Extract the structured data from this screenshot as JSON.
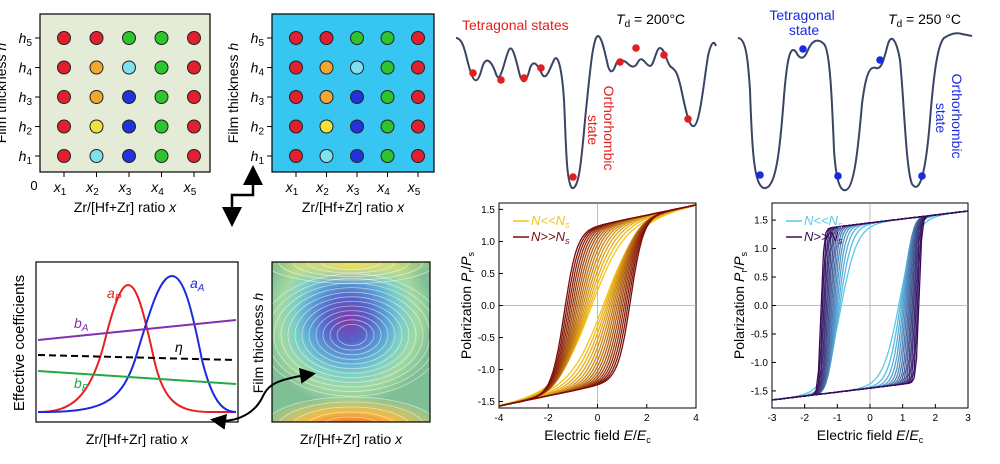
{
  "grid": {
    "x_ticks": [
      "x1",
      "x2",
      "x3",
      "x4",
      "x5"
    ],
    "x_labels": [
      "x",
      "x",
      "x",
      "x",
      "x"
    ],
    "sub_labels": [
      "1",
      "2",
      "3",
      "4",
      "5"
    ],
    "h_labels": [
      "h",
      "h",
      "h",
      "h",
      "h"
    ],
    "origin": "0",
    "ylabel_prefix": "Film thickness ",
    "ylabel_var": "h",
    "xlabel_prefix": "Zr/[Hf+Zr] ratio ",
    "xlabel_var": "x",
    "rows_h5_to_h1": [
      [
        "#e0202e",
        "#e0202e",
        "#2ec42e",
        "#2ec42e",
        "#e0202e"
      ],
      [
        "#e0202e",
        "#f0a830",
        "#7fe0f0",
        "#2ec42e",
        "#e0202e"
      ],
      [
        "#e0202e",
        "#f0a830",
        "#2233dd",
        "#2ec42e",
        "#e0202e"
      ],
      [
        "#e0202e",
        "#f0e040",
        "#2233dd",
        "#2ec42e",
        "#e0202e"
      ],
      [
        "#e0202e",
        "#7fe0f0",
        "#2233dd",
        "#2ec42e",
        "#e0202e"
      ]
    ],
    "bg_left": "#e4ecd8",
    "bg_right": "#37c6f2"
  },
  "coeffs": {
    "ylabel": "Effective coefficients",
    "xlabel_prefix": "Zr/[Hf+Zr] ratio ",
    "xlabel_var": "x",
    "aP": "a",
    "aP_sub": "P",
    "aA": "a",
    "aA_sub": "A",
    "bA": "b",
    "bA_sub": "A",
    "bP": "b",
    "bP_sub": "P",
    "eta": "η"
  },
  "contour": {
    "ylabel_prefix": "Film thickness ",
    "ylabel_var": "h",
    "xlabel_prefix": "Zr/[Hf+Zr] ratio ",
    "xlabel_var": "x"
  },
  "landscape": {
    "left_title": "Tetragonal states",
    "left_temp_prefix": "T",
    "left_temp_sub": "d",
    "left_temp_value": " = 200°C",
    "left_state": [
      "Orthorhombic",
      "state"
    ],
    "right_title": [
      "Tetragonal",
      "state"
    ],
    "right_temp_prefix": "T",
    "right_temp_sub": "d",
    "right_temp_value": " = 250 °C",
    "right_state": [
      "Orthorhombic",
      "state"
    ]
  },
  "chart_data": [
    {
      "type": "line",
      "ylabel": "Polarization P_r/P_s",
      "xlabel": "Electric field E/E_c",
      "xlim": [
        -4,
        4
      ],
      "ylim": [
        -1.6,
        1.6
      ],
      "x_ticks": [
        "-4",
        "-2",
        "0",
        "2",
        "4"
      ],
      "y_ticks": [
        "1.5",
        "1.0",
        "0.5",
        "0.0",
        "-0.5",
        "-1.0",
        "-1.5"
      ],
      "legend": [
        "N<<N_s",
        "N>>N_s"
      ],
      "legend_main": [
        "N<<N",
        "N>>N"
      ],
      "legend_sub": [
        "s",
        "s"
      ],
      "colors": [
        "#f5c518",
        "#7a0a0a"
      ]
    },
    {
      "type": "line",
      "ylabel": "Polarization P_r/P_s",
      "xlabel": "Electric field E/E_c",
      "xlim": [
        -3,
        3
      ],
      "ylim": [
        -1.8,
        1.8
      ],
      "x_ticks": [
        "-3",
        "-2",
        "-1",
        "0",
        "1",
        "2",
        "3"
      ],
      "y_ticks": [
        "1.5",
        "1.0",
        "0.5",
        "0.0",
        "-0.5",
        "-1.0",
        "-1.5"
      ],
      "legend": [
        "N<<N_s",
        "N>>N_s"
      ],
      "legend_main": [
        "N<<N",
        "N>>N"
      ],
      "legend_sub": [
        "s",
        "s"
      ],
      "colors": [
        "#5bc8ea",
        "#3a0a5a"
      ]
    }
  ]
}
